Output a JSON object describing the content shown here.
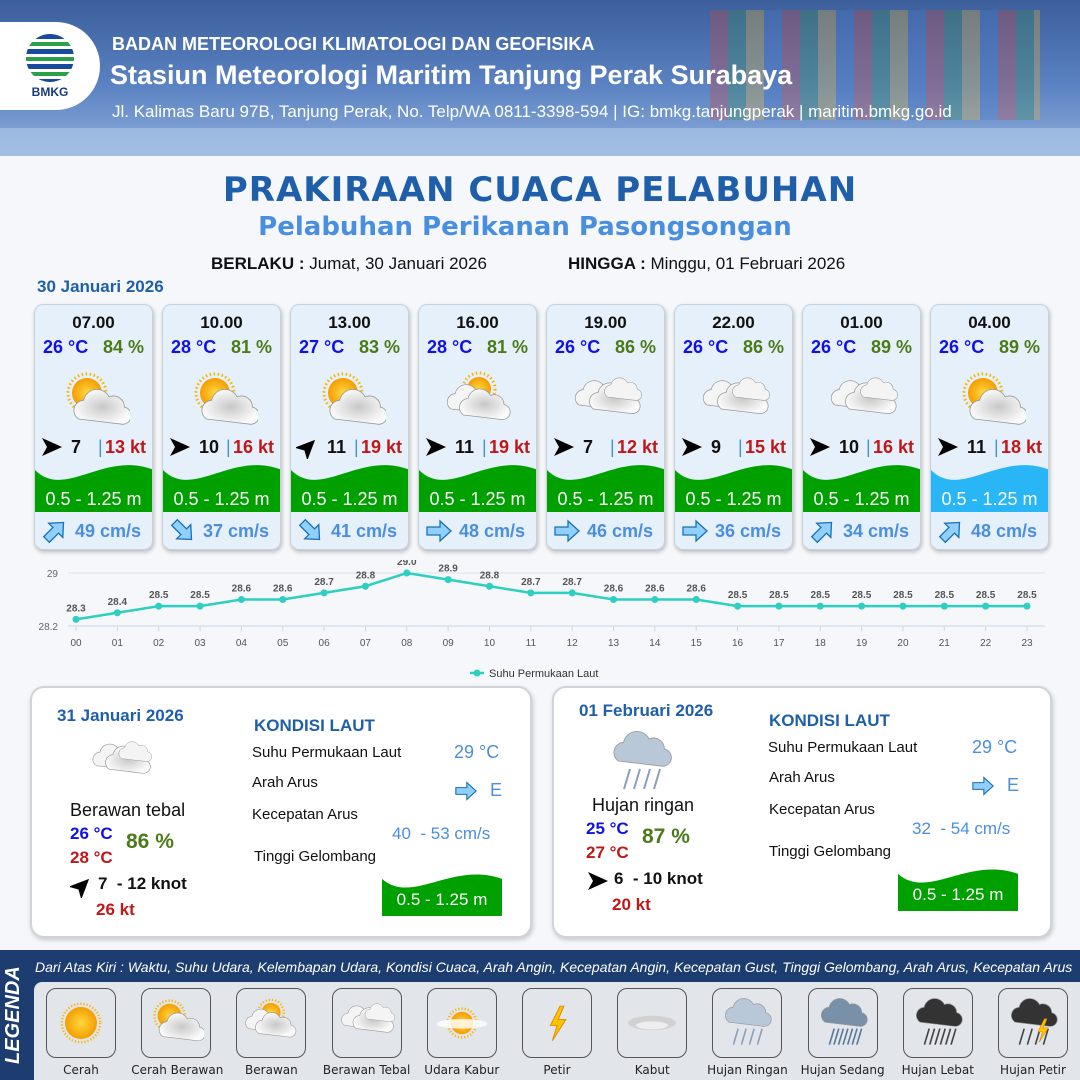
{
  "header": {
    "agency": "BADAN METEOROLOGI KLIMATOLOGI DAN GEOFISIKA",
    "station": "Stasiun Meteorologi Maritim Tanjung Perak Surabaya",
    "contact": "Jl. Kalimas Baru 97B, Tanjung Perak, No. Telp/WA 0811-3398-594 | IG: bmkg.tanjungperak | maritim.bmkg.go.id",
    "logo_text": "BMKG"
  },
  "title": "PRAKIRAAN CUACA PELABUHAN",
  "subtitle": "Pelabuhan Perikanan Pasongsongan",
  "validity": {
    "from_label": "BERLAKU :",
    "from": "Jumat, 30 Januari 2026",
    "to_label": "HINGGA :",
    "to": "Minggu, 01 Februari 2026"
  },
  "day_label": "30 Januari 2026",
  "forecasts": [
    {
      "time": "07.00",
      "temp": "26 °C",
      "hum": "84 %",
      "icon": "cerah-berawan",
      "wind_dir": "east",
      "wind": "7",
      "gust": "13 kt",
      "wave": "0.5 - 1.25 m",
      "wave_color": "#00a000",
      "current_dir": "northeast",
      "current": "49 cm/s"
    },
    {
      "time": "10.00",
      "temp": "28 °C",
      "hum": "81 %",
      "icon": "cerah-berawan",
      "wind_dir": "east",
      "wind": "10",
      "gust": "16 kt",
      "wave": "0.5 - 1.25 m",
      "wave_color": "#00a000",
      "current_dir": "southeast",
      "current": "37 cm/s"
    },
    {
      "time": "13.00",
      "temp": "27 °C",
      "hum": "83 %",
      "icon": "cerah-berawan",
      "wind_dir": "northeast",
      "wind": "11",
      "gust": "19 kt",
      "wave": "0.5 - 1.25 m",
      "wave_color": "#00a000",
      "current_dir": "southeast",
      "current": "41 cm/s"
    },
    {
      "time": "16.00",
      "temp": "28 °C",
      "hum": "81 %",
      "icon": "berawan",
      "wind_dir": "east",
      "wind": "11",
      "gust": "19 kt",
      "wave": "0.5 - 1.25 m",
      "wave_color": "#00a000",
      "current_dir": "east",
      "current": "48 cm/s"
    },
    {
      "time": "19.00",
      "temp": "26 °C",
      "hum": "86 %",
      "icon": "berawan-tebal",
      "wind_dir": "east",
      "wind": "7",
      "gust": "12 kt",
      "wave": "0.5 - 1.25 m",
      "wave_color": "#00a000",
      "current_dir": "east",
      "current": "46 cm/s"
    },
    {
      "time": "22.00",
      "temp": "26 °C",
      "hum": "86 %",
      "icon": "berawan-tebal",
      "wind_dir": "east",
      "wind": "9",
      "gust": "15 kt",
      "wave": "0.5 - 1.25 m",
      "wave_color": "#00a000",
      "current_dir": "east",
      "current": "36 cm/s"
    },
    {
      "time": "01.00",
      "temp": "26 °C",
      "hum": "89 %",
      "icon": "berawan-tebal",
      "wind_dir": "east",
      "wind": "10",
      "gust": "16 kt",
      "wave": "0.5 - 1.25 m",
      "wave_color": "#00a000",
      "current_dir": "northeast",
      "current": "34 cm/s"
    },
    {
      "time": "04.00",
      "temp": "26 °C",
      "hum": "89 %",
      "icon": "cerah-berawan",
      "wind_dir": "east",
      "wind": "11",
      "gust": "18 kt",
      "wave": "0.5 - 1.25 m",
      "wave_color": "#29b6f6",
      "current_dir": "northeast",
      "current": "48 cm/s"
    }
  ],
  "chart_data": {
    "type": "line",
    "categories": [
      "00",
      "01",
      "02",
      "03",
      "04",
      "05",
      "06",
      "07",
      "08",
      "09",
      "10",
      "11",
      "12",
      "13",
      "14",
      "15",
      "16",
      "17",
      "18",
      "19",
      "20",
      "21",
      "22",
      "23"
    ],
    "series": [
      {
        "name": "Suhu Permukaan Laut",
        "values": [
          28.3,
          28.4,
          28.5,
          28.5,
          28.6,
          28.6,
          28.7,
          28.8,
          29.0,
          28.9,
          28.8,
          28.7,
          28.7,
          28.6,
          28.6,
          28.6,
          28.5,
          28.5,
          28.5,
          28.5,
          28.5,
          28.5,
          28.5,
          28.5
        ],
        "color": "#2ccfc0"
      }
    ],
    "y_ticks": [
      "29",
      "28.2"
    ],
    "ylim": [
      28.2,
      29.0
    ],
    "grid": true,
    "legend": "bottom-center"
  },
  "daily": [
    {
      "date": "31 Januari 2026",
      "icon": "berawan-tebal",
      "condition": "Berawan tebal",
      "tmin": "26 °C",
      "tmax": "28 °C",
      "hum": "86 %",
      "wind_dir": "northeast",
      "wind": "7  - 12 knot",
      "gust": "26 kt",
      "sea": {
        "title": "KONDISI LAUT",
        "sst_label": "Suhu Permukaan Laut",
        "sst": "29 °C",
        "dir_label": "Arah Arus",
        "dir": "E",
        "speed_label": "Kecepatan Arus",
        "speed": "40  - 53 cm/s",
        "wave_label": "Tinggi Gelombang",
        "wave": "0.5 - 1.25 m"
      }
    },
    {
      "date": "01 Februari 2026",
      "icon": "hujan-ringan",
      "condition": "Hujan ringan",
      "tmin": "25 °C",
      "tmax": "27 °C",
      "hum": "87 %",
      "wind_dir": "east",
      "wind": "6  - 10 knot",
      "gust": "20 kt",
      "sea": {
        "title": "KONDISI LAUT",
        "sst_label": "Suhu Permukaan Laut",
        "sst": "29 °C",
        "dir_label": "Arah Arus",
        "dir": "E",
        "speed_label": "Kecepatan Arus",
        "speed": "32  - 54 cm/s",
        "wave_label": "Tinggi Gelombang",
        "wave": "0.5 - 1.25 m"
      }
    }
  ],
  "legend": {
    "title": "LEGENDA",
    "description": "Dari Atas Kiri : Waktu, Suhu Udara, Kelembapan Udara, Kondisi Cuaca, Arah Angin, Kecepatan Angin, Kecepatan Gust, Tinggi Gelombang, Arah Arus, Kecepatan Arus",
    "items": [
      {
        "label": "Cerah",
        "icon": "cerah"
      },
      {
        "label": "Cerah Berawan",
        "icon": "cerah-berawan"
      },
      {
        "label": "Berawan",
        "icon": "berawan"
      },
      {
        "label": "Berawan Tebal",
        "icon": "berawan-tebal"
      },
      {
        "label": "Udara Kabur",
        "icon": "udara-kabur"
      },
      {
        "label": "Petir",
        "icon": "petir"
      },
      {
        "label": "Kabut",
        "icon": "kabut"
      },
      {
        "label": "Hujan Ringan",
        "icon": "hujan-ringan"
      },
      {
        "label": "Hujan Sedang",
        "icon": "hujan-sedang"
      },
      {
        "label": "Hujan Lebat",
        "icon": "hujan-lebat"
      },
      {
        "label": "Hujan Petir",
        "icon": "hujan-petir"
      }
    ]
  }
}
